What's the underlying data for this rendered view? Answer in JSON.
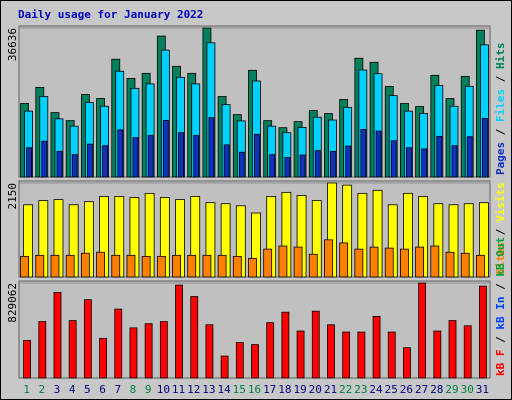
{
  "legend_separator": " / ",
  "chart_data": [
    {
      "type": "bar",
      "title": "Daily usage for January 2022",
      "ylim": [
        0,
        36636
      ],
      "yticks": [
        36636
      ],
      "series": [
        {
          "name": "Hits",
          "color": "#00805c",
          "values": [
            18068,
            22028,
            15840,
            13860,
            20295,
            19305,
            28958,
            24255,
            25493,
            34650,
            27225,
            25493,
            36636,
            19800,
            15345,
            26235,
            13860,
            12128,
            13613,
            16335,
            15593,
            19058,
            29205,
            28215,
            22275,
            18068,
            17325,
            24998,
            19305,
            24750,
            36100
          ]
        },
        {
          "name": "Files",
          "color": "#00d0ff",
          "values": [
            16200,
            19800,
            14300,
            12500,
            18300,
            17400,
            26000,
            21800,
            22900,
            31200,
            24500,
            22900,
            33000,
            17800,
            13800,
            23600,
            12500,
            10900,
            12200,
            14700,
            14000,
            17100,
            26300,
            25400,
            20000,
            16200,
            15600,
            22500,
            17400,
            22300,
            32500
          ]
        },
        {
          "name": "Pages",
          "color": "#1030c0",
          "values": [
            7200,
            8800,
            6300,
            5500,
            8100,
            7700,
            11600,
            9700,
            10200,
            13900,
            10900,
            10200,
            14600,
            7900,
            6100,
            10500,
            5500,
            4800,
            5400,
            6500,
            6300,
            7600,
            11700,
            11300,
            8900,
            7200,
            6900,
            10000,
            7700,
            9900,
            14400
          ]
        }
      ]
    },
    {
      "type": "bar",
      "ylim": [
        0,
        2150
      ],
      "yticks": [
        2150
      ],
      "series": [
        {
          "name": "Visits",
          "color": "#ffff00",
          "values": [
            1652,
            1747,
            1771,
            1652,
            1723,
            1842,
            1842,
            1818,
            1913,
            1818,
            1771,
            1842,
            1700,
            1676,
            1629,
            1464,
            1842,
            1936,
            1865,
            1747,
            2150,
            2101,
            1913,
            1983,
            1652,
            1913,
            1842,
            1676,
            1652,
            1676,
            1700
          ]
        },
        {
          "name": "Sites",
          "color": "#ff8000",
          "values": [
            472,
            496,
            496,
            496,
            543,
            566,
            496,
            496,
            472,
            472,
            496,
            496,
            496,
            496,
            472,
            425,
            637,
            708,
            684,
            519,
            850,
            779,
            637,
            684,
            661,
            637,
            684,
            708,
            566,
            543,
            496
          ]
        }
      ]
    },
    {
      "type": "bar",
      "ylim": [
        0,
        829062
      ],
      "yticks": [
        829062
      ],
      "series": [
        {
          "name": "kB F",
          "color": "#ff0000",
          "values": [
            327996,
            491994,
            747102,
            501105,
            683325,
            346218,
            601326,
            437328,
            473772,
            491994,
            810879,
            710658,
            464661,
            191331,
            309774,
            291552,
            482883,
            573993,
            409995,
            583104,
            464661,
            400884,
            400884,
            537549,
            400884,
            264219,
            829062,
            409995,
            501105,
            455550,
            801768
          ]
        }
      ],
      "legend_extra": [
        {
          "name": "kB In",
          "color": "#0040ff"
        },
        {
          "name": "kB Out",
          "color": "#00a040"
        }
      ],
      "categories": [
        "1",
        "2",
        "3",
        "4",
        "5",
        "6",
        "7",
        "8",
        "9",
        "10",
        "11",
        "12",
        "13",
        "14",
        "15",
        "16",
        "17",
        "18",
        "19",
        "20",
        "21",
        "22",
        "23",
        "24",
        "25",
        "26",
        "27",
        "28",
        "29",
        "30",
        "31"
      ],
      "category_colors": [
        "#008040",
        "#008040",
        "#000080",
        "#000080",
        "#000080",
        "#000080",
        "#000080",
        "#008040",
        "#008040",
        "#000080",
        "#000080",
        "#000080",
        "#000080",
        "#000080",
        "#008040",
        "#008040",
        "#000080",
        "#000080",
        "#000080",
        "#000080",
        "#000080",
        "#008040",
        "#008040",
        "#000080",
        "#000080",
        "#000080",
        "#000080",
        "#000080",
        "#008040",
        "#008040",
        "#000080"
      ]
    }
  ]
}
